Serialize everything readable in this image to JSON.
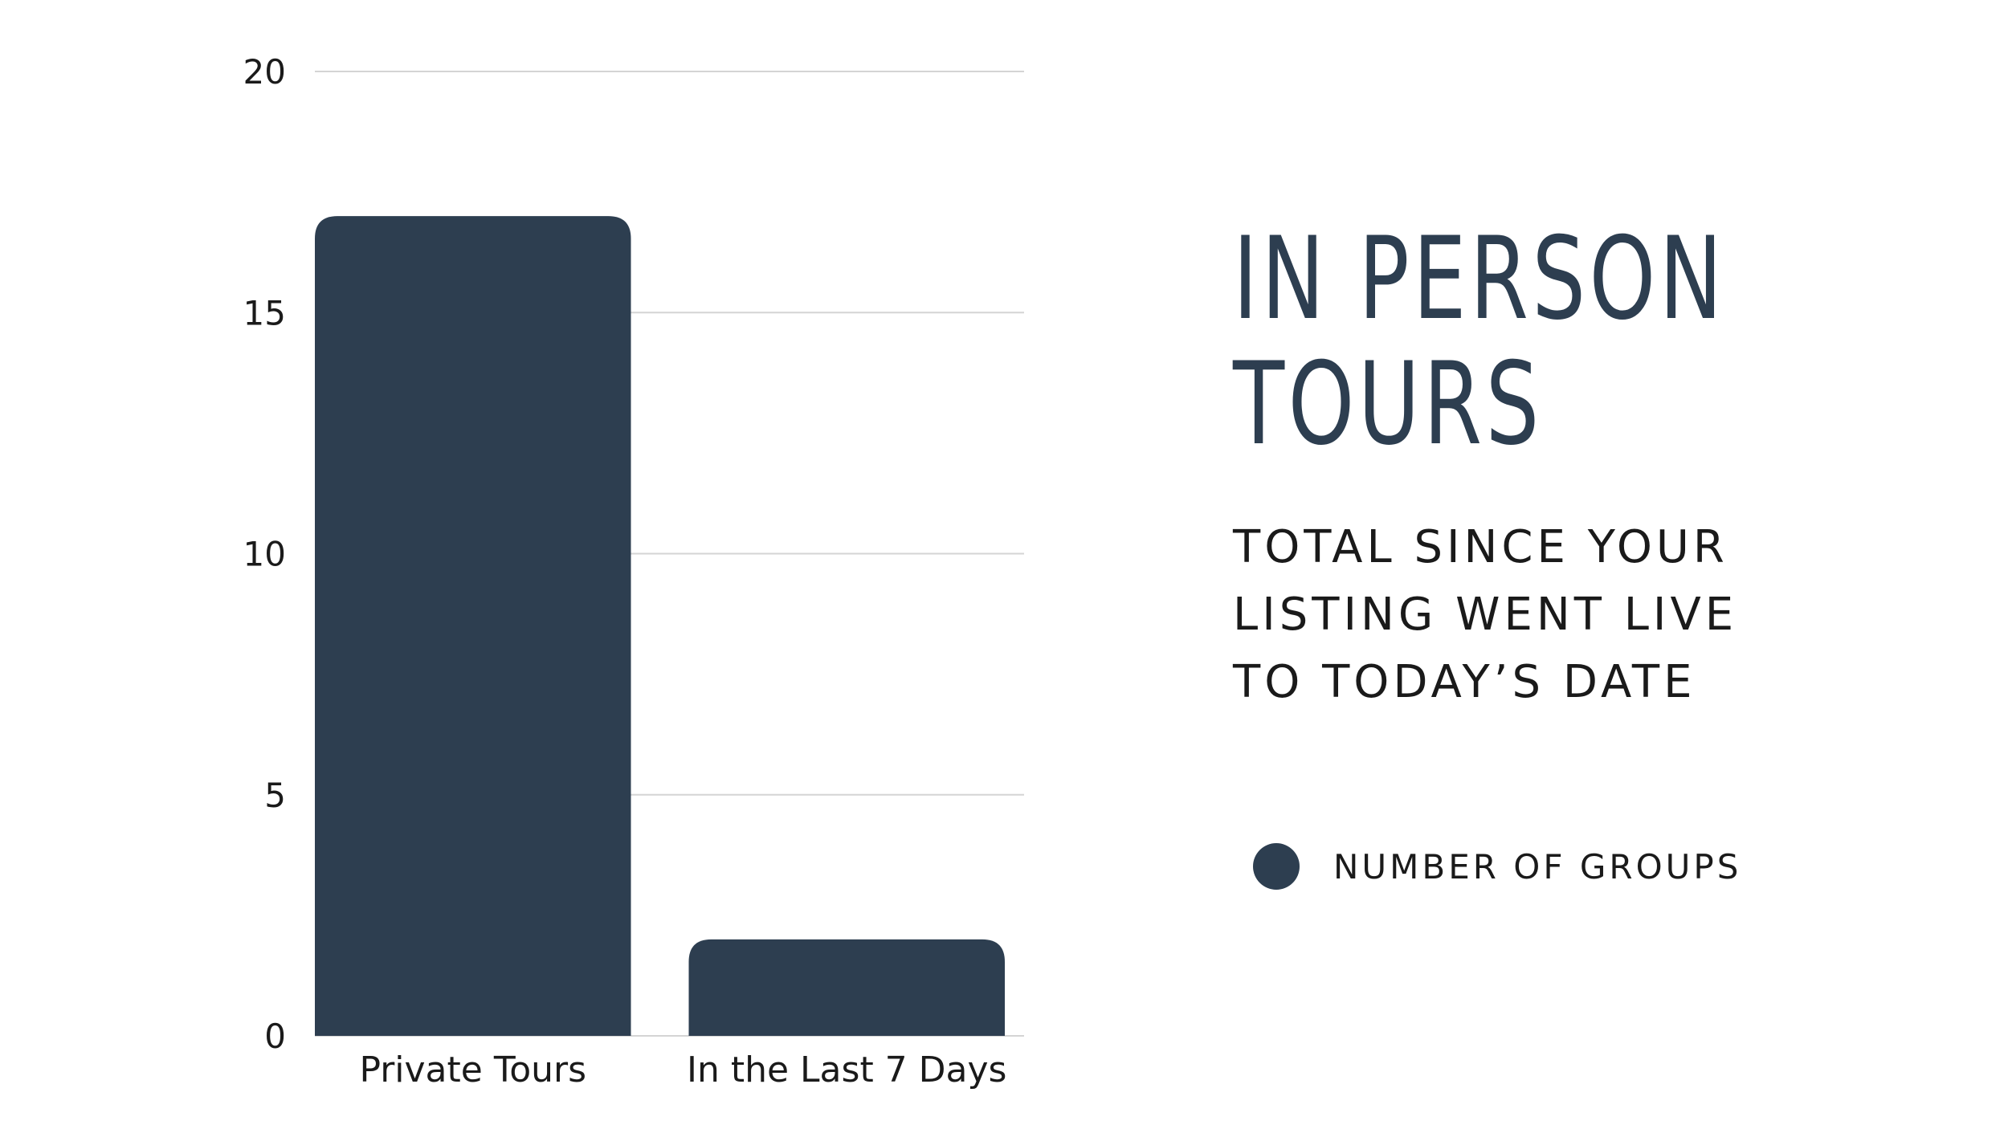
{
  "chart_data": {
    "type": "bar",
    "title": "IN PERSON TOURS",
    "subtitle_lines": [
      "TOTAL SINCE YOUR",
      "LISTING WENT LIVE",
      "TO TODAY’S DATE"
    ],
    "categories": [
      "Private Tours",
      "In the Last 7 Days"
    ],
    "series": [
      {
        "name": "NUMBER OF GROUPS",
        "values": [
          17,
          2
        ]
      }
    ],
    "ylim": [
      0,
      20
    ],
    "yticks": [
      0,
      5,
      10,
      15,
      20
    ],
    "grid": true,
    "legend_position": "right",
    "bar_color": "#2d3e50"
  }
}
